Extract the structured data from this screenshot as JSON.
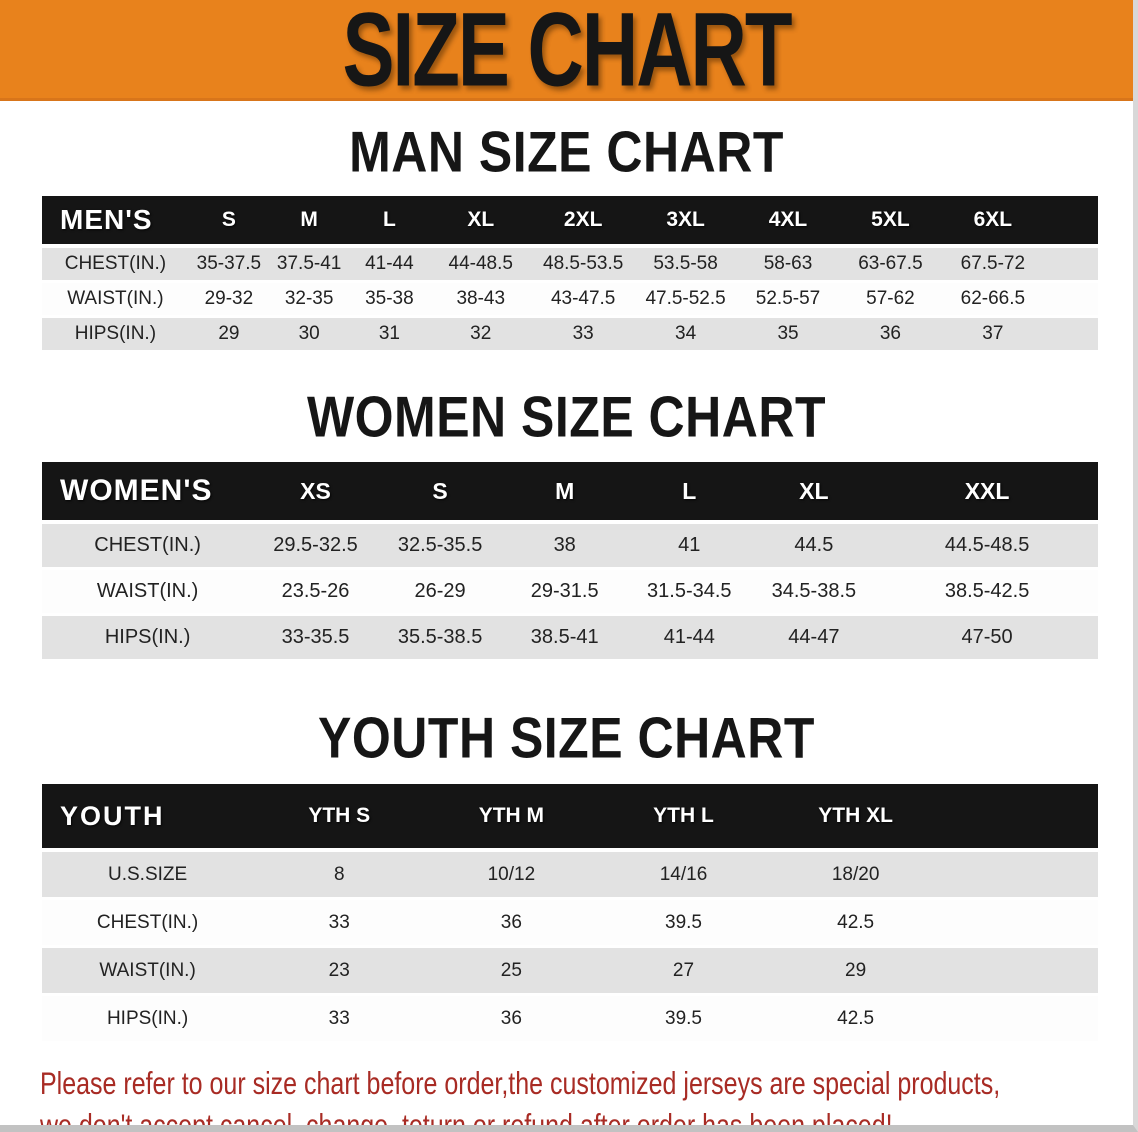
{
  "banner": {
    "title": "SIZE CHART"
  },
  "men": {
    "heading": "MAN SIZE CHART",
    "table": {
      "label": "MEN'S",
      "columns": [
        "S",
        "M",
        "L",
        "XL",
        "2XL",
        "3XL",
        "4XL",
        "5XL",
        "6XL"
      ],
      "rows": [
        {
          "label": "CHEST(IN.)",
          "values": [
            "35-37.5",
            "37.5-41",
            "41-44",
            "44-48.5",
            "48.5-53.5",
            "53.5-58",
            "58-63",
            "63-67.5",
            "67.5-72"
          ]
        },
        {
          "label": "WAIST(IN.)",
          "values": [
            "29-32",
            "32-35",
            "35-38",
            "38-43",
            "43-47.5",
            "47.5-52.5",
            "52.5-57",
            "57-62",
            "62-66.5"
          ]
        },
        {
          "label": "HIPS(IN.)",
          "values": [
            "29",
            "30",
            "31",
            "32",
            "33",
            "34",
            "35",
            "36",
            "37"
          ]
        }
      ]
    }
  },
  "women": {
    "heading": "WOMEN SIZE CHART",
    "table": {
      "label": "WOMEN'S",
      "columns": [
        "XS",
        "S",
        "M",
        "L",
        "XL",
        "XXL"
      ],
      "rows": [
        {
          "label": "CHEST(IN.)",
          "values": [
            "29.5-32.5",
            "32.5-35.5",
            "38",
            "41",
            "44.5",
            "44.5-48.5"
          ]
        },
        {
          "label": "WAIST(IN.)",
          "values": [
            "23.5-26",
            "26-29",
            "29-31.5",
            "31.5-34.5",
            "34.5-38.5",
            "38.5-42.5"
          ]
        },
        {
          "label": "HIPS(IN.)",
          "values": [
            "33-35.5",
            "35.5-38.5",
            "38.5-41",
            "41-44",
            "44-47",
            "47-50"
          ]
        }
      ]
    }
  },
  "youth": {
    "heading": "YOUTH SIZE CHART",
    "table": {
      "label": "YOUTH",
      "columns": [
        "YTH S",
        "YTH M",
        "YTH L",
        "YTH XL"
      ],
      "rows": [
        {
          "label": "U.S.SIZE",
          "values": [
            "8",
            "10/12",
            "14/16",
            "18/20"
          ]
        },
        {
          "label": "CHEST(IN.)",
          "values": [
            "33",
            "36",
            "39.5",
            "42.5"
          ]
        },
        {
          "label": "WAIST(IN.)",
          "values": [
            "23",
            "25",
            "27",
            "29"
          ]
        },
        {
          "label": "HIPS(IN.)",
          "values": [
            "33",
            "36",
            "39.5",
            "42.5"
          ]
        }
      ]
    }
  },
  "disclaimer": {
    "line1": "Please refer to our size chart before order,the customized jerseys are special products,",
    "line2": "we don't accept cancel, change, teturn or refund after order has been placed!"
  },
  "colors": {
    "banner_orange": "#E8821C",
    "header_black": "#151515",
    "row_gray": "#E2E2E2",
    "disclaimer_red": "#A82B24"
  }
}
